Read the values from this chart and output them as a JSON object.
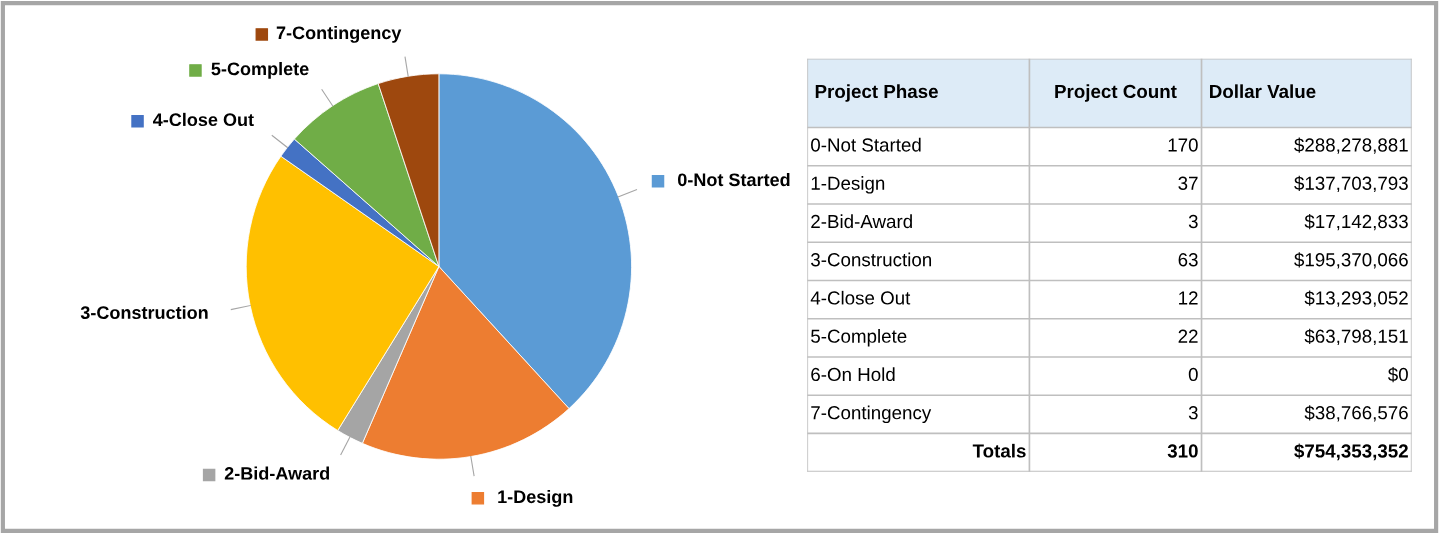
{
  "chart_data": [
    {
      "type": "pie",
      "categories": [
        "0-Not Started",
        "1-Design",
        "2-Bid-Award",
        "3-Construction",
        "4-Close Out",
        "5-Complete",
        "7-Contingency"
      ],
      "values": [
        38.2,
        18.3,
        2.3,
        25.9,
        1.8,
        8.4,
        5.1
      ],
      "colors": [
        "#5b9bd5",
        "#ed7d31",
        "#a5a5a5",
        "#ffc000",
        "#4472c4",
        "#70ad47",
        "#9e480e"
      ],
      "legend": "bottom right"
    },
    {
      "type": "other",
      "categories": [
        "0-Not Started",
        "1-Design",
        "2-Bid-Award",
        "3-Construction",
        "4-Close Out",
        "5-Complete",
        "6-On Hold",
        "7-Contingency"
      ],
      "annotations": [
        "Project Phase",
        "Totals"
      ],
      "series": [
        {
          "name": "Project Count",
          "values": [
            170,
            37,
            3,
            63,
            12,
            22,
            0,
            3
          ],
          "value_labels": [
            "170",
            "37",
            "3",
            "63",
            "12",
            "22",
            "0",
            "3"
          ]
        },
        {
          "name": "Dollar Value",
          "values": [
            288278881,
            137703793,
            17142833,
            195370066,
            13293052,
            63798151,
            0,
            38766576
          ],
          "value_labels": [
            "$288,278,881",
            "$137,703,793",
            "$17,142,833",
            "$195,370,066",
            "$13,293,052",
            "$63,798,151",
            "$0",
            "$38,766,576"
          ]
        }
      ],
      "totals": [
        "310",
        "$754,353,352"
      ]
    }
  ]
}
